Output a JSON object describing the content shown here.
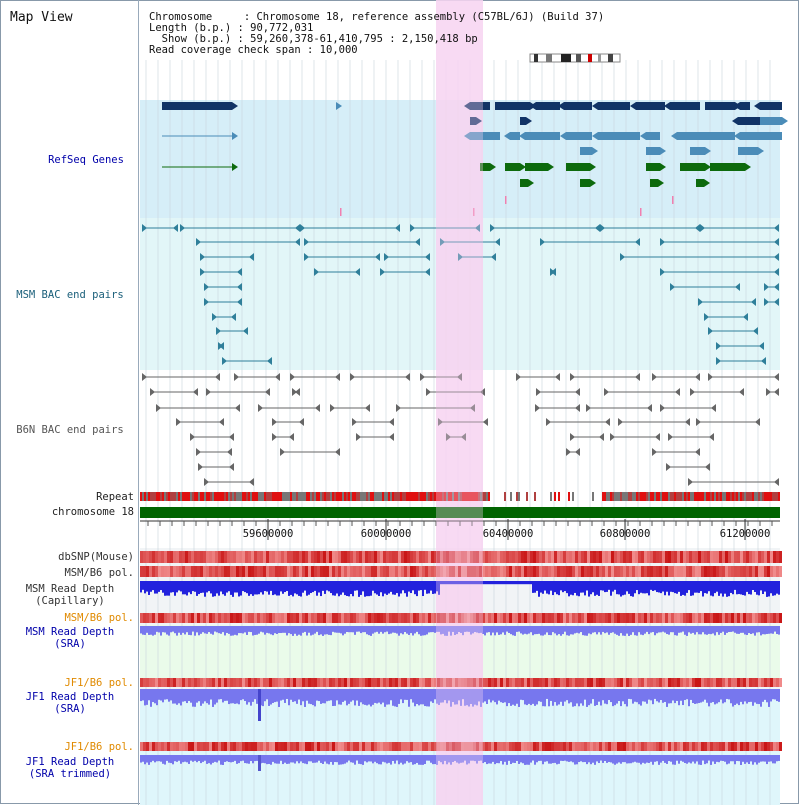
{
  "title": "Map View",
  "header": {
    "chromosome": "Chromosome     : Chromosome 18, reference assembly (C57BL/6J) (Build 37)",
    "length": "Length (b.p.) : 90,772,031",
    "show": "  Show (b.p.) : 59,260,378-61,410,795 : 2,150,418 bp",
    "coverage": "Read coverage check span : 10,000"
  },
  "tracks": {
    "refseq": "RefSeq Genes",
    "msm_bac": "MSM BAC end pairs",
    "b6n_bac": "B6N BAC end pairs",
    "repeat": "Repeat",
    "chromosome": "chromosome 18",
    "dbsnp": "dbSNP(Mouse)",
    "msm_b6_pol": "MSM/B6 pol.",
    "msm_read_cap": "MSM Read Depth\n(Capillary)",
    "msm_b6_pol_2": "MSM/B6 pol.",
    "msm_read_sra": "MSM Read Depth\n(SRA)",
    "jf1_b6_pol": "JF1/B6 pol.",
    "jf1_read_sra": "JF1 Read Depth\n(SRA)",
    "jf1_b6_pol_2": "JF1/B6 pol.",
    "jf1_read_trim": "JF1 Read Depth\n(SRA trimmed)"
  },
  "axis": {
    "ticks": [
      "59600000",
      "60000000",
      "60400000",
      "60800000",
      "61200000"
    ]
  },
  "colors": {
    "highlight": "#f7d4f1",
    "gene_dark": "#113366",
    "gene_mid": "#4b8cb8",
    "gene_green": "#0d6a0d",
    "bac_teal": "#2f7f9a",
    "bac_grey": "#666666",
    "chrom_green": "#006400",
    "depth_blue": "#2222dd",
    "depth_lavender": "#7777ee",
    "label_blue": "#0000aa",
    "label_orange": "#e08a00",
    "label_teal": "#1a5f7a"
  }
}
